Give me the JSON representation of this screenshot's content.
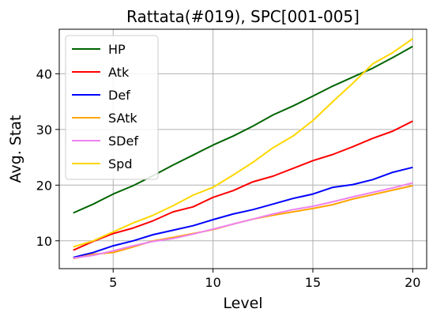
{
  "chart_data": {
    "type": "line",
    "title": "Rattata(#019), SPC[001-005]",
    "xlabel": "Level",
    "ylabel": "Avg. Stat",
    "xlim": [
      2.3,
      20.7
    ],
    "ylim": [
      5,
      48
    ],
    "xticks": [
      5,
      10,
      15,
      20
    ],
    "yticks": [
      10,
      20,
      30,
      40
    ],
    "grid": true,
    "legend_position": "top-left",
    "x": [
      3,
      4,
      5,
      6,
      7,
      8,
      9,
      10,
      11,
      12,
      13,
      14,
      15,
      16,
      17,
      18,
      19,
      20
    ],
    "series": [
      {
        "name": "HP",
        "color": "#006400",
        "values": [
          15.0,
          16.6,
          18.4,
          19.9,
          21.7,
          23.6,
          25.4,
          27.2,
          28.8,
          30.6,
          32.6,
          34.2,
          36.0,
          37.8,
          39.4,
          41.0,
          42.9,
          44.9
        ]
      },
      {
        "name": "Atk",
        "color": "#ff0000",
        "values": [
          8.3,
          9.9,
          11.3,
          12.3,
          13.6,
          15.2,
          16.1,
          17.8,
          19.0,
          20.6,
          21.6,
          23.0,
          24.4,
          25.5,
          26.9,
          28.4,
          29.7,
          31.5
        ]
      },
      {
        "name": "Def",
        "color": "#0000ff",
        "values": [
          7.0,
          7.9,
          9.1,
          10.0,
          11.1,
          11.9,
          12.7,
          13.8,
          14.8,
          15.6,
          16.6,
          17.6,
          18.4,
          19.6,
          20.1,
          21.0,
          22.3,
          23.2
        ]
      },
      {
        "name": "SAtk",
        "color": "#ffa500",
        "values": [
          6.8,
          7.6,
          7.9,
          8.9,
          10.0,
          10.6,
          11.3,
          12.0,
          13.0,
          13.9,
          14.6,
          15.2,
          15.8,
          16.5,
          17.5,
          18.3,
          19.1,
          19.9
        ]
      },
      {
        "name": "SDef",
        "color": "#ee82ee",
        "values": [
          6.9,
          7.4,
          8.2,
          9.1,
          9.9,
          10.4,
          11.2,
          12.1,
          13.0,
          13.9,
          14.8,
          15.6,
          16.2,
          17.0,
          17.9,
          18.7,
          19.5,
          20.4
        ]
      },
      {
        "name": "Spd",
        "color": "#ffd700",
        "values": [
          8.9,
          10.0,
          11.6,
          13.2,
          14.6,
          16.3,
          18.2,
          19.6,
          21.8,
          24.1,
          26.7,
          28.8,
          31.6,
          35.0,
          38.3,
          41.8,
          43.8,
          46.3
        ]
      }
    ]
  }
}
